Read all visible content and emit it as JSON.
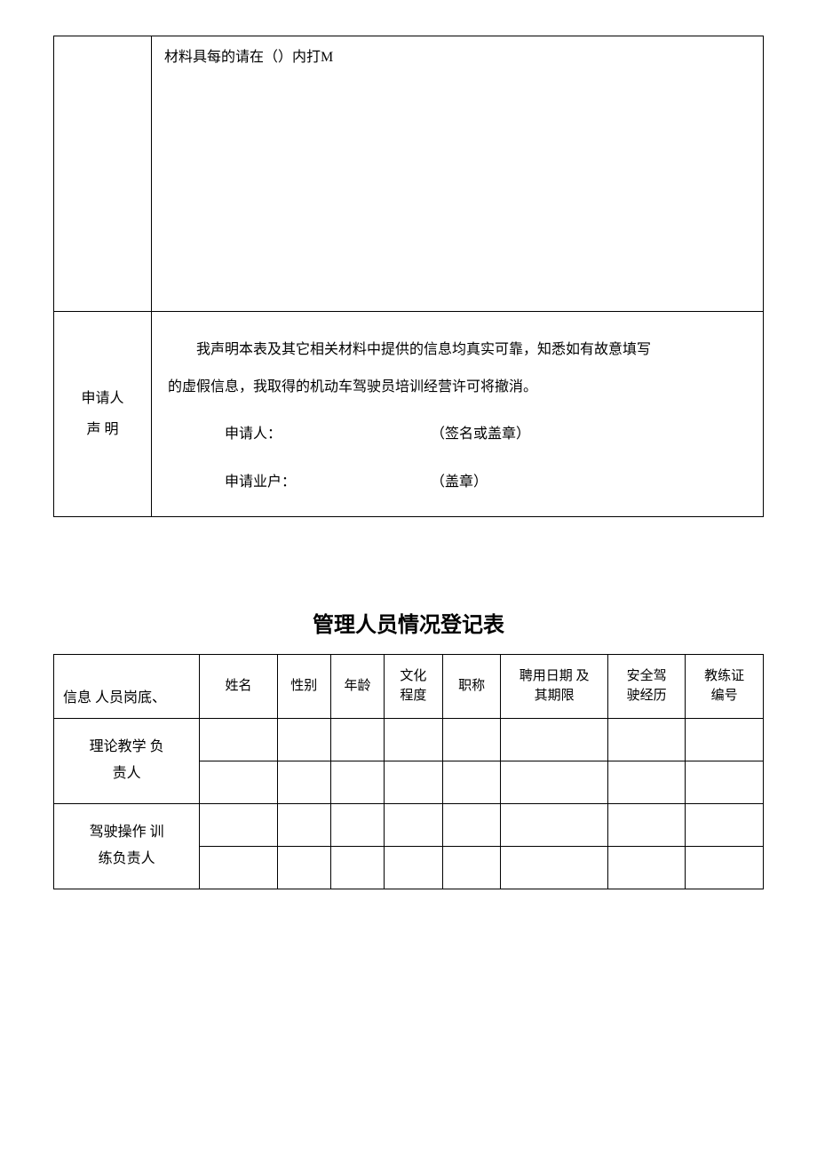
{
  "table1": {
    "row1_text": "材料具每的请在（）内打M",
    "row2_label_line1": "申请人",
    "row2_label_line2": "声 明",
    "declaration_part1": "我声明本表及其它相关材料中提供的信息均真实可靠，知悉如有故意填写",
    "declaration_part2": "的虚假信息，我取得的机动车驾驶员培训经营许可将撤消。",
    "applicant_label": "申请人：",
    "applicant_sig": "（签名或盖章）",
    "business_label": "申请业户：",
    "business_sig": "（盖章）"
  },
  "table2": {
    "title": "管理人员情况登记表",
    "corner_label": "信息 人员岗底、",
    "headers": {
      "name": "姓名",
      "sex": "性别",
      "age": "年龄",
      "edu": "文化\n程度",
      "title": "职称",
      "hire": "聘用日期 及\n其期限",
      "safe": "安全驾\n驶经历",
      "cert": "教练证\n编号"
    },
    "row_labels": {
      "r1": "理论教学 负\n责人",
      "r2": "驾驶操作 训\n练负责人"
    }
  },
  "colors": {
    "border": "#000000",
    "text": "#000000",
    "background": "#ffffff"
  }
}
